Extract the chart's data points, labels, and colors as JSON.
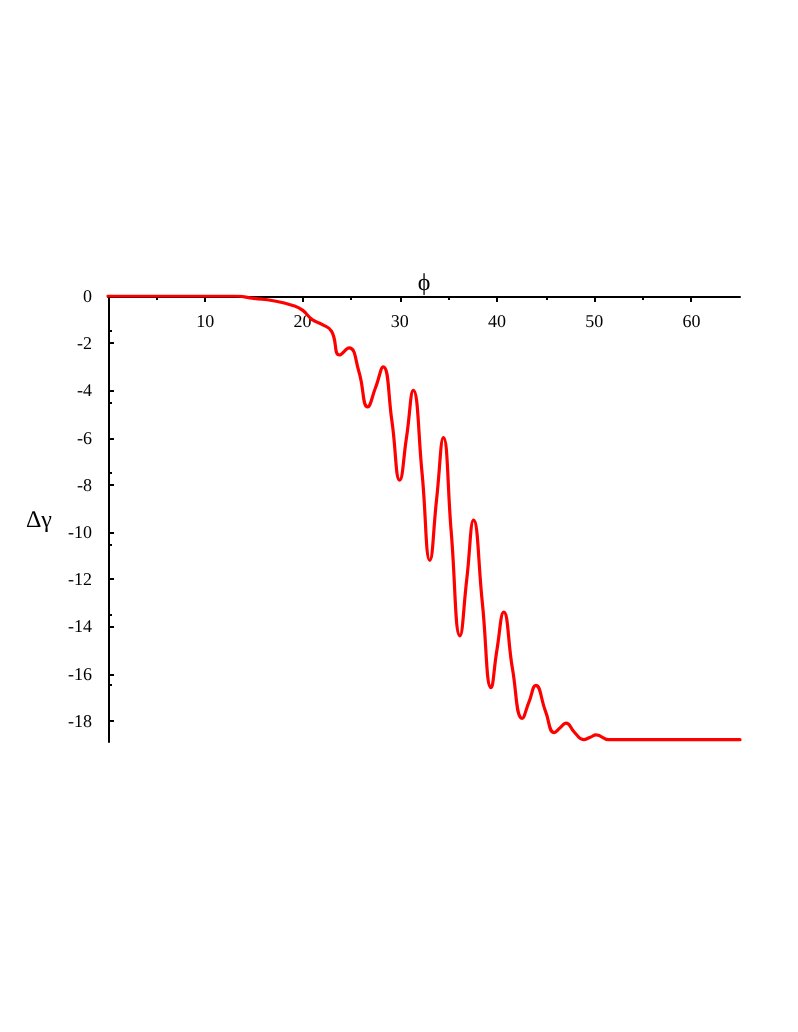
{
  "chart_data": {
    "type": "line",
    "xlabel": "ϕ",
    "ylabel": "Δγ",
    "xlim": [
      0,
      65
    ],
    "ylim": [
      -18.9,
      0
    ],
    "xticks": [
      10,
      20,
      30,
      40,
      50,
      60
    ],
    "yticks": [
      0,
      -2,
      -4,
      -6,
      -8,
      -10,
      -12,
      -14,
      -16,
      -18
    ],
    "grid": false,
    "marker": "none",
    "line_style": "solid",
    "series": [
      {
        "color": "#ff0000",
        "x": [
          0,
          5,
          10,
          13,
          15,
          17,
          19,
          20,
          21,
          22,
          23,
          23.8,
          24.8,
          25.8,
          26.7,
          27.5,
          28.3,
          29.2,
          30.0,
          30.7,
          31.4,
          32.3,
          33.1,
          33.8,
          34.5,
          35.3,
          36.2,
          36.9,
          37.6,
          38.5,
          39.4,
          40.0,
          40.7,
          41.6,
          42.6,
          43.3,
          44.0,
          45.0,
          45.9,
          46.5,
          47.1,
          48.0,
          48.9,
          49.6,
          50.2,
          51.5,
          53,
          55,
          60,
          65
        ],
        "values": [
          0,
          0,
          0,
          0,
          -0.1,
          -0.2,
          -0.4,
          -0.6,
          -1.0,
          -1.2,
          -1.5,
          -2.5,
          -2.2,
          -3.2,
          -4.7,
          -3.9,
          -3.0,
          -5.3,
          -7.8,
          -6.0,
          -4.0,
          -7.5,
          -11.2,
          -8.6,
          -6.0,
          -10.0,
          -14.4,
          -12.0,
          -9.5,
          -13.0,
          -16.6,
          -15.0,
          -13.4,
          -15.8,
          -17.9,
          -17.2,
          -16.5,
          -17.6,
          -18.5,
          -18.3,
          -18.1,
          -18.5,
          -18.8,
          -18.7,
          -18.6,
          -18.8,
          -18.8,
          -18.8,
          -18.8,
          -18.8
        ]
      }
    ]
  }
}
